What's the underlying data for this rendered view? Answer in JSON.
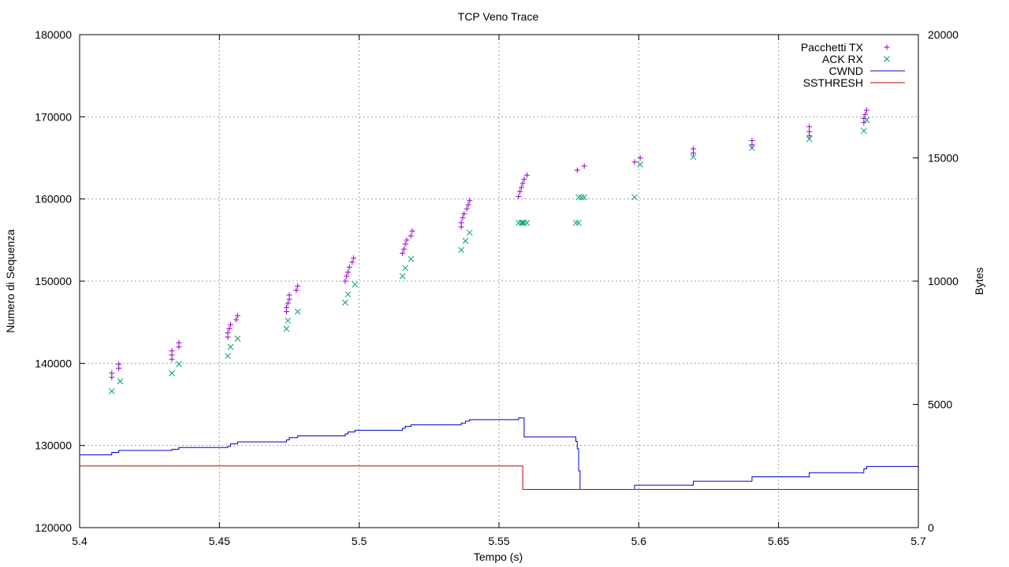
{
  "chart_data": {
    "type": "scatter",
    "title": "TCP Veno Trace",
    "xlabel": "Tempo (s)",
    "ylabel": "Numero di Sequenza",
    "y2label": "Bytes",
    "xlim": [
      5.4,
      5.7
    ],
    "ylim": [
      120000,
      180000
    ],
    "y2lim": [
      0,
      20000
    ],
    "xticks": [
      "5.4",
      "5.45",
      "5.5",
      "5.55",
      "5.6",
      "5.65",
      "5.7"
    ],
    "xtick_values": [
      5.4,
      5.45,
      5.5,
      5.55,
      5.6,
      5.65,
      5.7
    ],
    "yticks": [
      "120000",
      "130000",
      "140000",
      "150000",
      "160000",
      "170000",
      "180000"
    ],
    "ytick_values": [
      120000,
      130000,
      140000,
      150000,
      160000,
      170000,
      180000
    ],
    "y2ticks": [
      "0",
      "5000",
      "10000",
      "15000",
      "20000"
    ],
    "y2tick_values": [
      0,
      5000,
      10000,
      15000,
      20000
    ],
    "grid": true,
    "legend_position": "top-right",
    "series": [
      {
        "name": "Pacchetti TX",
        "kind": "points",
        "marker": "plus",
        "axis": "y1",
        "color": "#9400d3",
        "points": [
          [
            5.4115,
            138300
          ],
          [
            5.4115,
            138800
          ],
          [
            5.414,
            139400
          ],
          [
            5.414,
            139900
          ],
          [
            5.433,
            140500
          ],
          [
            5.433,
            141000
          ],
          [
            5.433,
            141500
          ],
          [
            5.4355,
            142000
          ],
          [
            5.4355,
            142500
          ],
          [
            5.453,
            143200
          ],
          [
            5.453,
            143700
          ],
          [
            5.4535,
            144200
          ],
          [
            5.454,
            144700
          ],
          [
            5.456,
            145300
          ],
          [
            5.4565,
            145800
          ],
          [
            5.474,
            146300
          ],
          [
            5.474,
            146800
          ],
          [
            5.4745,
            147300
          ],
          [
            5.475,
            147800
          ],
          [
            5.475,
            148300
          ],
          [
            5.4775,
            148900
          ],
          [
            5.478,
            149400
          ],
          [
            5.495,
            150000
          ],
          [
            5.4955,
            150600
          ],
          [
            5.496,
            151100
          ],
          [
            5.4965,
            151700
          ],
          [
            5.4975,
            152300
          ],
          [
            5.498,
            152800
          ],
          [
            5.5155,
            153400
          ],
          [
            5.516,
            153900
          ],
          [
            5.5165,
            154500
          ],
          [
            5.517,
            155000
          ],
          [
            5.5185,
            155500
          ],
          [
            5.519,
            156100
          ],
          [
            5.5365,
            156600
          ],
          [
            5.5365,
            157100
          ],
          [
            5.537,
            157700
          ],
          [
            5.5375,
            158200
          ],
          [
            5.5385,
            158800
          ],
          [
            5.539,
            159300
          ],
          [
            5.5395,
            159800
          ],
          [
            5.557,
            160300
          ],
          [
            5.5575,
            160900
          ],
          [
            5.558,
            161400
          ],
          [
            5.5585,
            161900
          ],
          [
            5.559,
            162400
          ],
          [
            5.56,
            162900
          ],
          [
            5.578,
            163500
          ],
          [
            5.5805,
            164000
          ],
          [
            5.5985,
            164500
          ],
          [
            5.6005,
            165000
          ],
          [
            5.6195,
            165600
          ],
          [
            5.6195,
            166100
          ],
          [
            5.6405,
            166600
          ],
          [
            5.6405,
            167100
          ],
          [
            5.661,
            167700
          ],
          [
            5.661,
            168200
          ],
          [
            5.661,
            168800
          ],
          [
            5.6805,
            169300
          ],
          [
            5.6805,
            169800
          ],
          [
            5.681,
            170300
          ],
          [
            5.6815,
            170800
          ]
        ]
      },
      {
        "name": "ACK RX",
        "kind": "points",
        "marker": "cross",
        "axis": "y1",
        "color": "#009e73",
        "points": [
          [
            5.4115,
            136600
          ],
          [
            5.4145,
            137800
          ],
          [
            5.433,
            138800
          ],
          [
            5.4355,
            139900
          ],
          [
            5.453,
            140900
          ],
          [
            5.454,
            142000
          ],
          [
            5.4565,
            143000
          ],
          [
            5.474,
            144200
          ],
          [
            5.4745,
            145200
          ],
          [
            5.478,
            146300
          ],
          [
            5.495,
            147400
          ],
          [
            5.496,
            148400
          ],
          [
            5.4985,
            149600
          ],
          [
            5.5155,
            150600
          ],
          [
            5.5165,
            151600
          ],
          [
            5.5185,
            152700
          ],
          [
            5.5365,
            153800
          ],
          [
            5.538,
            154900
          ],
          [
            5.5395,
            155900
          ],
          [
            5.557,
            157100
          ],
          [
            5.558,
            157100
          ],
          [
            5.5585,
            157100
          ],
          [
            5.559,
            157100
          ],
          [
            5.56,
            157100
          ],
          [
            5.5775,
            157100
          ],
          [
            5.5785,
            157100
          ],
          [
            5.5785,
            160200
          ],
          [
            5.5795,
            160200
          ],
          [
            5.5805,
            160200
          ],
          [
            5.5985,
            160200
          ],
          [
            5.6005,
            164200
          ],
          [
            5.6195,
            165100
          ],
          [
            5.6405,
            166200
          ],
          [
            5.661,
            167300
          ],
          [
            5.6805,
            168300
          ],
          [
            5.6815,
            169600
          ]
        ]
      },
      {
        "name": "CWND",
        "kind": "line",
        "axis": "y2",
        "color": "#0000cc",
        "points": [
          [
            5.4,
            2950
          ],
          [
            5.4115,
            2950
          ],
          [
            5.4115,
            3050
          ],
          [
            5.414,
            3050
          ],
          [
            5.414,
            3130
          ],
          [
            5.433,
            3130
          ],
          [
            5.433,
            3180
          ],
          [
            5.4355,
            3180
          ],
          [
            5.4355,
            3250
          ],
          [
            5.453,
            3250
          ],
          [
            5.453,
            3300
          ],
          [
            5.454,
            3300
          ],
          [
            5.454,
            3400
          ],
          [
            5.4565,
            3400
          ],
          [
            5.4565,
            3480
          ],
          [
            5.474,
            3480
          ],
          [
            5.474,
            3560
          ],
          [
            5.475,
            3560
          ],
          [
            5.475,
            3650
          ],
          [
            5.478,
            3650
          ],
          [
            5.478,
            3720
          ],
          [
            5.495,
            3720
          ],
          [
            5.495,
            3800
          ],
          [
            5.496,
            3800
          ],
          [
            5.496,
            3880
          ],
          [
            5.4985,
            3880
          ],
          [
            5.4985,
            3950
          ],
          [
            5.5155,
            3950
          ],
          [
            5.5155,
            4030
          ],
          [
            5.5165,
            4030
          ],
          [
            5.5165,
            4110
          ],
          [
            5.5185,
            4110
          ],
          [
            5.5185,
            4170
          ],
          [
            5.5365,
            4170
          ],
          [
            5.5365,
            4240
          ],
          [
            5.538,
            4240
          ],
          [
            5.538,
            4320
          ],
          [
            5.5395,
            4320
          ],
          [
            5.5395,
            4380
          ],
          [
            5.557,
            4380
          ],
          [
            5.557,
            4450
          ],
          [
            5.559,
            4450
          ],
          [
            5.559,
            3680
          ],
          [
            5.5775,
            3680
          ],
          [
            5.5775,
            3500
          ],
          [
            5.578,
            3500
          ],
          [
            5.578,
            3200
          ],
          [
            5.5785,
            3200
          ],
          [
            5.5785,
            2300
          ],
          [
            5.579,
            2300
          ],
          [
            5.579,
            1550
          ],
          [
            5.5985,
            1550
          ],
          [
            5.5985,
            1720
          ],
          [
            5.6195,
            1720
          ],
          [
            5.6195,
            1880
          ],
          [
            5.6405,
            1880
          ],
          [
            5.6405,
            2060
          ],
          [
            5.661,
            2060
          ],
          [
            5.661,
            2230
          ],
          [
            5.6805,
            2230
          ],
          [
            5.6805,
            2380
          ],
          [
            5.6815,
            2380
          ],
          [
            5.6815,
            2480
          ],
          [
            5.7,
            2480
          ]
        ]
      },
      {
        "name": "SSTHRESH",
        "kind": "line",
        "axis": "y2",
        "color": "#cc0000",
        "points": [
          [
            5.4,
            2500
          ],
          [
            5.5585,
            2500
          ],
          [
            5.5585,
            1550
          ],
          [
            5.7,
            1550
          ]
        ]
      }
    ]
  }
}
